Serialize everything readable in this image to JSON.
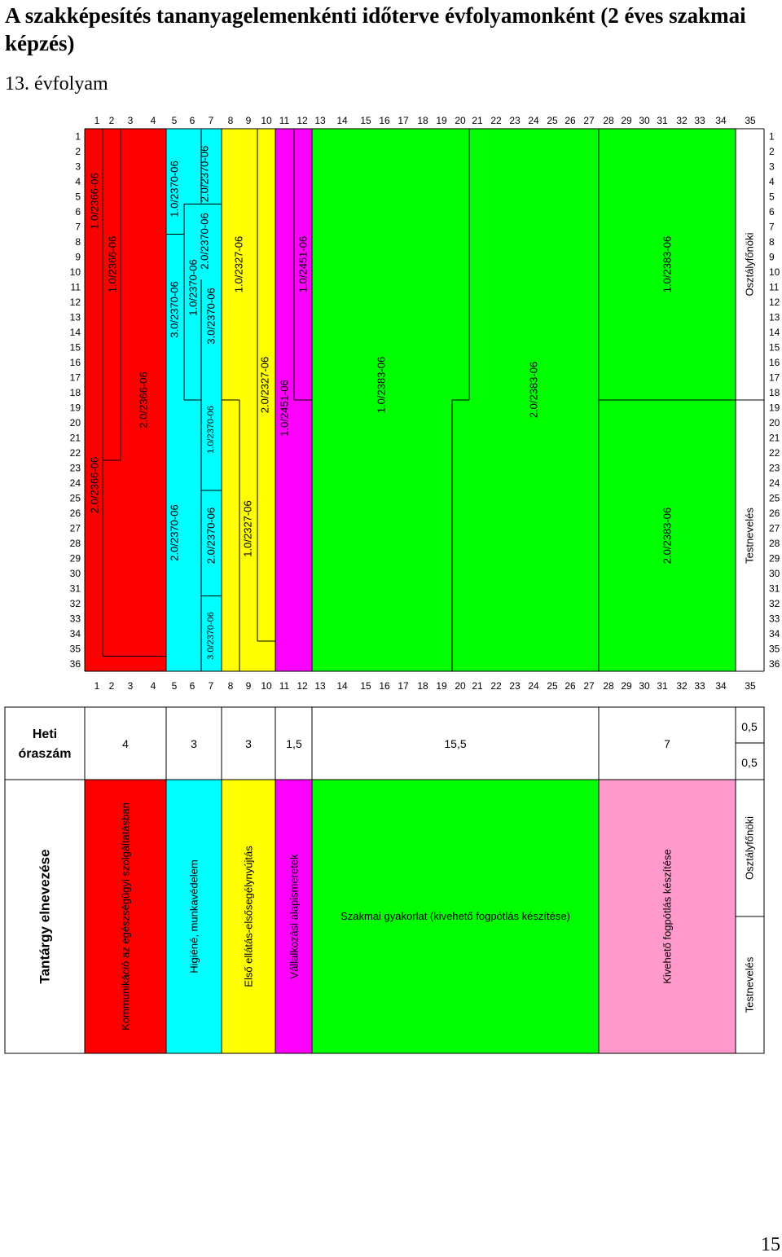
{
  "document": {
    "title": "A szakképesítés tananyagelemenkénti időterve évfolyamonként (2 éves szakmai képzés)",
    "subtitle": "13. évfolyam",
    "page_number": "15"
  },
  "colors": {
    "red": "#ff0000",
    "cyan": "#00ffff",
    "yellow": "#ffff00",
    "magenta": "#ff00ff",
    "green": "#00ff00",
    "pink": "#ff99cc",
    "white": "#ffffff"
  },
  "grid": {
    "col_labels": [
      "1",
      "2",
      "3",
      "4",
      "5",
      "6",
      "7",
      "8",
      "9",
      "10",
      "11",
      "12",
      "13",
      "14",
      "15",
      "16",
      "17",
      "18",
      "19",
      "20",
      "21",
      "22",
      "23",
      "24",
      "25",
      "26",
      "27",
      "28",
      "29",
      "30",
      "31",
      "32",
      "33",
      "34",
      "35"
    ],
    "row_labels": [
      "1",
      "2",
      "3",
      "4",
      "5",
      "6",
      "7",
      "8",
      "9",
      "10",
      "11",
      "12",
      "13",
      "14",
      "15",
      "16",
      "17",
      "18",
      "19",
      "20",
      "21",
      "22",
      "23",
      "24",
      "25",
      "26",
      "27",
      "28",
      "29",
      "30",
      "31",
      "32",
      "33",
      "34",
      "35",
      "36"
    ]
  },
  "modules": [
    {
      "label": "1.0/2366-06",
      "color": "red"
    },
    {
      "label": "1.0/2366-06",
      "color": "red"
    },
    {
      "label": "2.0/2366-06",
      "color": "red"
    },
    {
      "label": "2.0/2366-06",
      "color": "red"
    },
    {
      "label": "1.0/2370-06",
      "color": "cyan"
    },
    {
      "label": "3.0/2370-06",
      "color": "cyan"
    },
    {
      "label": "2.0/2370-06",
      "color": "cyan"
    },
    {
      "label": "2.0/2370-06",
      "color": "cyan"
    },
    {
      "label": "1.0/2370-06",
      "color": "cyan"
    },
    {
      "label": "2.0/2370-06",
      "color": "cyan"
    },
    {
      "label": "3.0/2370-06",
      "color": "cyan"
    },
    {
      "label": "1.0/2370-06",
      "color": "cyan"
    },
    {
      "label": "2.0/2370-06",
      "color": "cyan"
    },
    {
      "label": "3.0/2370-06",
      "color": "cyan"
    },
    {
      "label": "1.0/2327-06",
      "color": "yellow"
    },
    {
      "label": "1.0/2327-06",
      "color": "yellow"
    },
    {
      "label": "2.0/2327-06",
      "color": "yellow"
    },
    {
      "label": "1.0/2451-06",
      "color": "magenta"
    },
    {
      "label": "1.0/2451-06",
      "color": "magenta"
    },
    {
      "label": "1.0/2383-06",
      "color": "green"
    },
    {
      "label": "2.0/2383-06",
      "color": "green"
    },
    {
      "label": "1.0/2383-06",
      "color": "green"
    },
    {
      "label": "2.0/2383-06",
      "color": "green"
    },
    {
      "label": "Osztályfőnöki",
      "color": "white"
    },
    {
      "label": "Testnevelés",
      "color": "white"
    }
  ],
  "weekly_hours": {
    "header": "Heti óraszám",
    "values": [
      "4",
      "3",
      "3",
      "1,5",
      "15,5",
      "7"
    ],
    "split_top": "0,5",
    "split_bottom": "0,5"
  },
  "subjects": {
    "header": "Tantárgy elnevezése",
    "items": [
      {
        "name": "Kommunikáció az egészségügyi szolgáltatásban",
        "color": "red"
      },
      {
        "name": "Higiéné, munkavédelem",
        "color": "cyan"
      },
      {
        "name": "Első ellátás-elsősegélynyújtás",
        "color": "yellow"
      },
      {
        "name": "Vállalkozási alapismeretek",
        "color": "magenta"
      },
      {
        "name": "Szakmai gyakorlat (kivehető fogpótlás készítése)",
        "color": "green"
      },
      {
        "name": "Kivehető fogpótlás készítése",
        "color": "pink"
      },
      {
        "name": "Osztályfőnöki",
        "color": "white"
      },
      {
        "name": "Testnevelés",
        "color": "white"
      }
    ]
  }
}
